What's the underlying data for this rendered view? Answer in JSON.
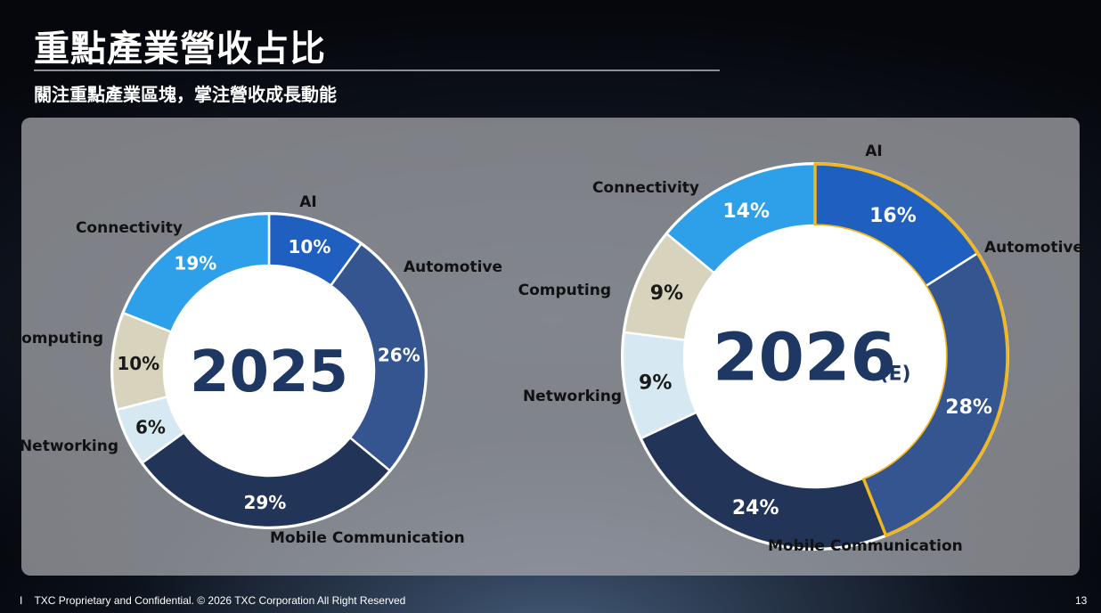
{
  "slide": {
    "title": "重點產業營收占比",
    "subtitle": "關注重點產業區塊，掌注營收成長動能",
    "footer": "TXC Proprietary and Confidential. © 2026 TXC Corporation All Right Reserved",
    "footer_marker": "I",
    "page_number": "13"
  },
  "colors": {
    "AI": "#1f5fbf",
    "Automotive": "#34558f",
    "Mobile Communication": "#223558",
    "Networking": "#d6e9f2",
    "Computing": "#d7d3bc",
    "Connectivity": "#2ea0ea",
    "center_text": "#1f3763",
    "highlight": "#f2b71c"
  },
  "chart_data": [
    {
      "type": "pie",
      "variant": "donut",
      "center_label": "2025",
      "center_suffix": "",
      "categories": [
        "AI",
        "Automotive",
        "Mobile Communication",
        "Networking",
        "Computing",
        "Connectivity"
      ],
      "values": [
        10,
        26,
        29,
        6,
        10,
        19
      ],
      "value_labels": [
        "10%",
        "26%",
        "29%",
        "6%",
        "10%",
        "19%"
      ],
      "highlighted": []
    },
    {
      "type": "pie",
      "variant": "donut",
      "center_label": "2026",
      "center_suffix": "(E)",
      "categories": [
        "AI",
        "Automotive",
        "Mobile Communication",
        "Networking",
        "Computing",
        "Connectivity"
      ],
      "values": [
        16,
        28,
        24,
        9,
        9,
        14
      ],
      "value_labels": [
        "16%",
        "28%",
        "24%",
        "9%",
        "9%",
        "14%"
      ],
      "highlighted": [
        "AI",
        "Automotive"
      ]
    }
  ]
}
